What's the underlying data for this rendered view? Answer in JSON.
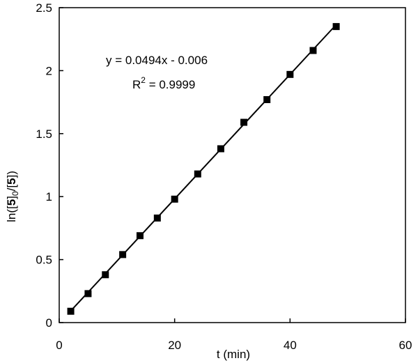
{
  "chart_data": {
    "type": "scatter",
    "xlabel": "t (min)",
    "ylabel": {
      "prefix": "ln([",
      "bold_a": "5",
      "mid_a": "]",
      "sub": "0",
      "mid_b": "/[",
      "bold_b": "5",
      "suffix": "])"
    },
    "xlim": [
      0,
      60
    ],
    "ylim": [
      0,
      2.5
    ],
    "x_ticks": [
      0,
      20,
      40,
      60
    ],
    "x_tick_labels": [
      "0",
      "20",
      "40",
      "60"
    ],
    "y_ticks": [
      0,
      0.5,
      1,
      1.5,
      2,
      2.5
    ],
    "y_tick_labels": [
      "0",
      "0.5",
      "1",
      "1.5",
      "2",
      "2.5"
    ],
    "grid": false,
    "series": [
      {
        "x": [
          2,
          5,
          8,
          11,
          14,
          17,
          20,
          24,
          28,
          32,
          36,
          40,
          44,
          48
        ],
        "y": [
          0.09,
          0.23,
          0.38,
          0.54,
          0.69,
          0.83,
          0.98,
          1.18,
          1.38,
          1.59,
          1.77,
          1.97,
          2.16,
          2.35
        ]
      }
    ],
    "trendline": {
      "slope": 0.0494,
      "intercept": -0.006,
      "x_range": [
        2,
        48
      ]
    },
    "annotations": {
      "equation": "y = 0.0494x - 0.006",
      "r2_prefix": "R",
      "r2_sup": "2",
      "r2_value": " = 0.9999"
    }
  }
}
